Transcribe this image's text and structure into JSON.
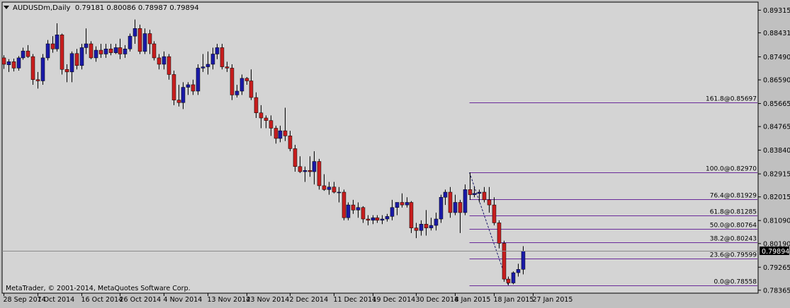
{
  "header": {
    "symbol": "AUDUSDm,Daily",
    "ohlc": "0.79181 0.80086 0.78987 0.79894"
  },
  "copyright": "MetaTrader, © 2001-2014, MetaQuotes Software Corp.",
  "colors": {
    "background": "#d4d4d4",
    "frame": "#c0c0c0",
    "bull_body": "#1a1aa8",
    "bear_body": "#c81e1e",
    "wick": "#000000",
    "fib_line": "#6a2a9a",
    "price_line": "#8a8a8a"
  },
  "chart_data": {
    "type": "candlestick",
    "symbol": "AUDUSDm",
    "timeframe": "Daily",
    "ylim": [
      0.7825,
      0.8963
    ],
    "y_ticks": [
      "0.89315",
      "0.88431",
      "0.87490",
      "0.86590",
      "0.85665",
      "0.84765",
      "0.83840",
      "0.82915",
      "0.82015",
      "0.81090",
      "0.80190",
      "0.79265",
      "0.78365"
    ],
    "x_tick_labels": [
      {
        "label": "28 Sep 2014",
        "index": 0
      },
      {
        "label": "7 Oct 2014",
        "index": 7
      },
      {
        "label": "16 Oct 2014",
        "index": 16
      },
      {
        "label": "26 Oct 2014",
        "index": 24
      },
      {
        "label": "4 Nov 2014",
        "index": 33
      },
      {
        "label": "13 Nov 2014",
        "index": 42
      },
      {
        "label": "23 Nov 2014",
        "index": 50
      },
      {
        "label": "2 Dec 2014",
        "index": 59
      },
      {
        "label": "11 Dec 2014",
        "index": 68
      },
      {
        "label": "19 Dec 2014",
        "index": 76
      },
      {
        "label": "30 Dec 2014",
        "index": 85
      },
      {
        "label": "8 Jan 2015",
        "index": 93
      },
      {
        "label": "18 Jan 2015",
        "index": 101
      },
      {
        "label": "27 Jan 2015",
        "index": 109
      }
    ],
    "candles": [
      [
        0.8745,
        0.8755,
        0.8702,
        0.872
      ],
      [
        0.8718,
        0.874,
        0.869,
        0.873
      ],
      [
        0.873,
        0.8742,
        0.8692,
        0.8705
      ],
      [
        0.8705,
        0.8752,
        0.8695,
        0.8745
      ],
      [
        0.8745,
        0.8785,
        0.8738,
        0.8772
      ],
      [
        0.8772,
        0.8795,
        0.8745,
        0.875
      ],
      [
        0.875,
        0.876,
        0.864,
        0.866
      ],
      [
        0.866,
        0.869,
        0.8625,
        0.8655
      ],
      [
        0.8655,
        0.876,
        0.864,
        0.8745
      ],
      [
        0.8745,
        0.8815,
        0.8735,
        0.88
      ],
      [
        0.88,
        0.883,
        0.8765,
        0.878
      ],
      [
        0.878,
        0.888,
        0.877,
        0.8835
      ],
      [
        0.8835,
        0.884,
        0.868,
        0.87
      ],
      [
        0.87,
        0.872,
        0.865,
        0.869
      ],
      [
        0.869,
        0.877,
        0.865,
        0.8762
      ],
      [
        0.8762,
        0.878,
        0.87,
        0.8715
      ],
      [
        0.8715,
        0.88,
        0.87,
        0.8785
      ],
      [
        0.8785,
        0.886,
        0.876,
        0.88
      ],
      [
        0.88,
        0.881,
        0.874,
        0.8745
      ],
      [
        0.8745,
        0.879,
        0.873,
        0.8775
      ],
      [
        0.8775,
        0.88,
        0.8745,
        0.876
      ],
      [
        0.876,
        0.88,
        0.8745,
        0.878
      ],
      [
        0.878,
        0.88,
        0.8755,
        0.8765
      ],
      [
        0.8765,
        0.88,
        0.876,
        0.8785
      ],
      [
        0.8785,
        0.882,
        0.874,
        0.876
      ],
      [
        0.876,
        0.8795,
        0.8745,
        0.878
      ],
      [
        0.878,
        0.884,
        0.877,
        0.883
      ],
      [
        0.883,
        0.8895,
        0.88,
        0.886
      ],
      [
        0.886,
        0.8875,
        0.876,
        0.877
      ],
      [
        0.877,
        0.886,
        0.876,
        0.884
      ],
      [
        0.884,
        0.8855,
        0.876,
        0.88
      ],
      [
        0.88,
        0.881,
        0.8735,
        0.8745
      ],
      [
        0.8745,
        0.876,
        0.87,
        0.872
      ],
      [
        0.872,
        0.877,
        0.87,
        0.875
      ],
      [
        0.875,
        0.876,
        0.866,
        0.868
      ],
      [
        0.868,
        0.8695,
        0.856,
        0.858
      ],
      [
        0.858,
        0.864,
        0.8555,
        0.857
      ],
      [
        0.857,
        0.865,
        0.8545,
        0.863
      ],
      [
        0.863,
        0.865,
        0.86,
        0.864
      ],
      [
        0.864,
        0.866,
        0.86,
        0.8615
      ],
      [
        0.8615,
        0.872,
        0.86,
        0.8705
      ],
      [
        0.8705,
        0.876,
        0.869,
        0.871
      ],
      [
        0.871,
        0.877,
        0.868,
        0.872
      ],
      [
        0.872,
        0.8785,
        0.87,
        0.876
      ],
      [
        0.876,
        0.88,
        0.874,
        0.8785
      ],
      [
        0.8785,
        0.88,
        0.87,
        0.871
      ],
      [
        0.871,
        0.873,
        0.869,
        0.8705
      ],
      [
        0.8705,
        0.872,
        0.858,
        0.86
      ],
      [
        0.86,
        0.864,
        0.859,
        0.8615
      ],
      [
        0.8615,
        0.868,
        0.86,
        0.8665
      ],
      [
        0.8665,
        0.867,
        0.864,
        0.8655
      ],
      [
        0.8655,
        0.87,
        0.858,
        0.859
      ],
      [
        0.859,
        0.861,
        0.851,
        0.853
      ],
      [
        0.853,
        0.856,
        0.847,
        0.851
      ],
      [
        0.851,
        0.852,
        0.847,
        0.85
      ],
      [
        0.85,
        0.852,
        0.844,
        0.847
      ],
      [
        0.847,
        0.848,
        0.841,
        0.843
      ],
      [
        0.843,
        0.848,
        0.8415,
        0.846
      ],
      [
        0.846,
        0.855,
        0.842,
        0.844
      ],
      [
        0.844,
        0.846,
        0.838,
        0.839
      ],
      [
        0.839,
        0.8405,
        0.83,
        0.832
      ],
      [
        0.832,
        0.836,
        0.8295,
        0.83
      ],
      [
        0.83,
        0.832,
        0.826,
        0.8305
      ],
      [
        0.8305,
        0.836,
        0.828,
        0.83
      ],
      [
        0.83,
        0.838,
        0.825,
        0.834
      ],
      [
        0.834,
        0.835,
        0.823,
        0.8245
      ],
      [
        0.8245,
        0.829,
        0.8225,
        0.823
      ],
      [
        0.823,
        0.826,
        0.821,
        0.824
      ],
      [
        0.824,
        0.826,
        0.8215,
        0.822
      ],
      [
        0.822,
        0.824,
        0.818,
        0.822
      ],
      [
        0.822,
        0.823,
        0.811,
        0.812
      ],
      [
        0.812,
        0.818,
        0.811,
        0.817
      ],
      [
        0.817,
        0.819,
        0.8135,
        0.815
      ],
      [
        0.815,
        0.818,
        0.812,
        0.816
      ],
      [
        0.816,
        0.8165,
        0.81,
        0.8115
      ],
      [
        0.8115,
        0.813,
        0.809,
        0.811
      ],
      [
        0.811,
        0.813,
        0.8095,
        0.812
      ],
      [
        0.812,
        0.813,
        0.81,
        0.811
      ],
      [
        0.811,
        0.813,
        0.8095,
        0.8115
      ],
      [
        0.8115,
        0.8135,
        0.8105,
        0.8125
      ],
      [
        0.8125,
        0.819,
        0.811,
        0.816
      ],
      [
        0.816,
        0.818,
        0.813,
        0.818
      ],
      [
        0.818,
        0.8215,
        0.816,
        0.817
      ],
      [
        0.817,
        0.82,
        0.816,
        0.818
      ],
      [
        0.818,
        0.8185,
        0.806,
        0.808
      ],
      [
        0.808,
        0.81,
        0.804,
        0.807
      ],
      [
        0.807,
        0.811,
        0.805,
        0.8095
      ],
      [
        0.8095,
        0.815,
        0.805,
        0.808
      ],
      [
        0.808,
        0.812,
        0.807,
        0.809
      ],
      [
        0.809,
        0.814,
        0.807,
        0.8115
      ],
      [
        0.8115,
        0.821,
        0.81,
        0.82
      ],
      [
        0.82,
        0.823,
        0.817,
        0.822
      ],
      [
        0.822,
        0.824,
        0.812,
        0.814
      ],
      [
        0.814,
        0.821,
        0.813,
        0.818
      ],
      [
        0.818,
        0.819,
        0.806,
        0.814
      ],
      [
        0.814,
        0.825,
        0.813,
        0.823
      ],
      [
        0.823,
        0.8297,
        0.819,
        0.821
      ],
      [
        0.821,
        0.824,
        0.82,
        0.8215
      ],
      [
        0.8215,
        0.823,
        0.818,
        0.822
      ],
      [
        0.822,
        0.824,
        0.818,
        0.819
      ],
      [
        0.819,
        0.824,
        0.814,
        0.817
      ],
      [
        0.817,
        0.82,
        0.809,
        0.81
      ],
      [
        0.81,
        0.811,
        0.8,
        0.802
      ],
      [
        0.802,
        0.803,
        0.787,
        0.788
      ],
      [
        0.788,
        0.789,
        0.7856,
        0.7865
      ],
      [
        0.7865,
        0.791,
        0.786,
        0.7905
      ],
      [
        0.7905,
        0.794,
        0.789,
        0.7918
      ],
      [
        0.79181,
        0.80086,
        0.78987,
        0.79894
      ]
    ],
    "current_price": "0.79894",
    "fibonacci": {
      "levels": [
        {
          "label": "161.8@0.85697",
          "price": 0.85697
        },
        {
          "label": "100.0@0.82970",
          "price": 0.8297
        },
        {
          "label": "76.4@0.81929",
          "price": 0.81929
        },
        {
          "label": "61.8@0.81285",
          "price": 0.81285
        },
        {
          "label": "50.0@0.80764",
          "price": 0.80764
        },
        {
          "label": "38.2@0.80243",
          "price": 0.80243
        },
        {
          "label": "23.6@0.79599",
          "price": 0.79599
        },
        {
          "label": "0.0@0.78558",
          "price": 0.78558
        }
      ],
      "trend_from": {
        "index": 96,
        "price": 0.8297
      },
      "trend_to": {
        "index": 104,
        "price": 0.78558
      }
    }
  }
}
